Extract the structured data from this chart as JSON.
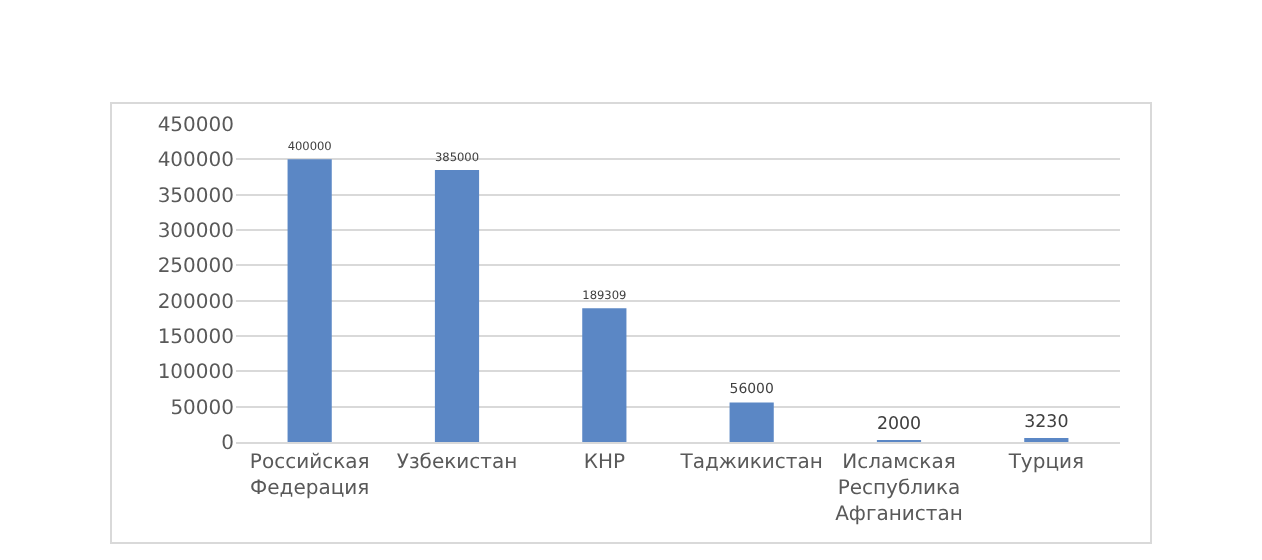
{
  "chart_data": {
    "type": "bar",
    "categories": [
      "Российская Федерация",
      "Узбекистан",
      "КНР",
      "Таджикистан",
      "Исламская Республика Афганистан",
      "Турция"
    ],
    "values": [
      400000,
      385000,
      189309,
      56000,
      2000,
      3230
    ],
    "color": "#5b87c5",
    "ylim": [
      0,
      450000
    ],
    "yticks": [
      0,
      50000,
      100000,
      150000,
      200000,
      250000,
      300000,
      350000,
      400000,
      450000
    ],
    "grid": "y",
    "data_labels": true,
    "legend": false
  }
}
